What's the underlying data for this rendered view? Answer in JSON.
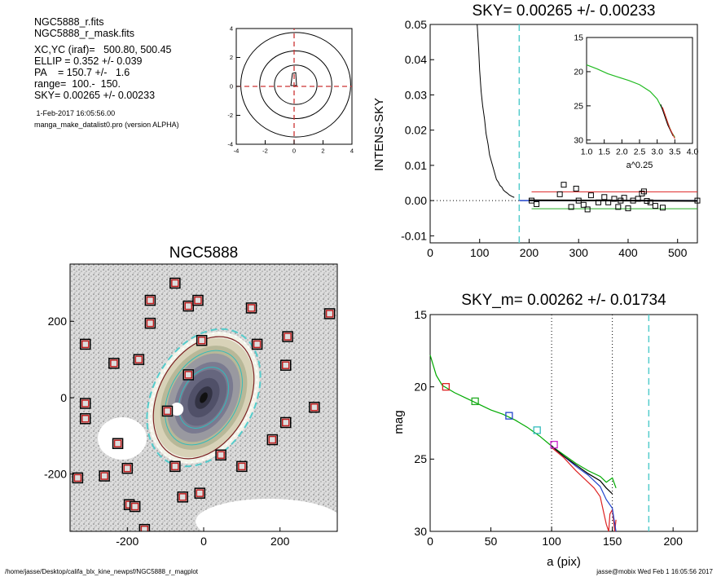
{
  "info": {
    "lines": [
      "NGC5888_r.fits",
      "NGC5888_r_mask.fits",
      "XC,YC (iraf)=   500.80, 500.45",
      "ELLIP = 0.352 +/- 0.039",
      "PA    = 150.7 +/-   1.6",
      "range=  100.-  150.",
      "SKY= 0.00265 +/- 0.00233"
    ],
    "date": " 1-Feb-2017 16:05:56.00",
    "program": "manga_make_datalist0.pro (version ALPHA)"
  },
  "footer": {
    "left": "/home/jasse/Desktop/califa_blx_kine_newpsf/NGC5888_r_magplot",
    "right": "jasse@mobix  Wed Feb  1 16:05:56 2017"
  },
  "chart_data": [
    {
      "id": "contour",
      "type": "contour",
      "xlim": [
        -4,
        4
      ],
      "ylim": [
        -4,
        4
      ],
      "xticks": [
        "-4",
        "-2",
        "0",
        "2",
        "4"
      ],
      "yticks": [
        "4",
        "2",
        "0",
        "-2",
        "-4"
      ],
      "crosshair_color": "#cc3333",
      "contour_radii": [
        3.8,
        2.6,
        1.6
      ]
    },
    {
      "id": "sky",
      "type": "scatter",
      "title": "SKY= 0.00265 +/- 0.00233",
      "ylabel": "INTENS-SKY",
      "xlim": [
        0,
        540
      ],
      "ylim": [
        -0.012,
        0.05
      ],
      "xticks": [
        "0",
        "100",
        "200",
        "300",
        "400",
        "500"
      ],
      "yticks": [
        "0.05",
        "0.04",
        "0.03",
        "0.02",
        "0.01",
        "0.00",
        "-0.01"
      ],
      "vline_x": 180,
      "vline_color": "#55cccc",
      "sky_upper": 0.0025,
      "sky_lower": -0.0023,
      "profile_x": [
        95,
        98,
        100,
        103,
        106,
        110,
        113,
        117,
        120,
        124,
        128,
        131,
        134,
        138,
        141,
        145,
        148,
        152,
        156,
        160,
        165,
        170
      ],
      "profile_y": [
        0.05,
        0.043,
        0.037,
        0.031,
        0.027,
        0.023,
        0.019,
        0.016,
        0.013,
        0.011,
        0.009,
        0.0075,
        0.006,
        0.0052,
        0.0043,
        0.0038,
        0.003,
        0.0025,
        0.0021,
        0.0016,
        0.0012,
        0.0009
      ],
      "points_x": [
        205,
        215,
        262,
        270,
        285,
        295,
        300,
        310,
        318,
        325,
        340,
        352,
        360,
        372,
        380,
        385,
        392,
        400,
        410,
        420,
        428,
        432,
        438,
        445,
        455,
        470,
        540
      ],
      "points_y": [
        0.0,
        -0.001,
        0.0018,
        0.0045,
        -0.0018,
        0.0034,
        0.0,
        -0.0012,
        -0.0025,
        0.0015,
        -0.0005,
        0.001,
        -0.0005,
        0.0005,
        -0.0018,
        0.0,
        0.0008,
        -0.0022,
        0.0,
        0.0005,
        0.002,
        0.0026,
        -0.0001,
        -0.0005,
        -0.0015,
        -0.002,
        0.0
      ],
      "inset": {
        "xlabel": "a^0.25",
        "xlim": [
          1.0,
          4.0
        ],
        "ylim": [
          15,
          30.5
        ],
        "xticks": [
          "1.0",
          "1.5",
          "2.0",
          "2.5",
          "3.0",
          "3.5",
          "4.0"
        ],
        "yticks": [
          "15",
          "20",
          "25",
          "30"
        ],
        "curve_x": [
          1.0,
          1.3,
          1.6,
          1.9,
          2.2,
          2.5,
          2.8,
          3.0,
          3.2,
          3.3,
          3.4,
          3.5
        ],
        "curve_y": [
          19.0,
          19.6,
          20.3,
          20.8,
          21.3,
          21.9,
          22.9,
          24.0,
          26.0,
          27.5,
          28.8,
          29.6
        ]
      }
    },
    {
      "id": "image",
      "type": "image",
      "title": "NGC5888",
      "xlim": [
        -350,
        350
      ],
      "ylim": [
        -350,
        350
      ],
      "xticks": [
        "-200",
        "0",
        "200"
      ],
      "yticks": [
        "200",
        "0",
        "-200"
      ],
      "ellipse_color": "#55cccc",
      "masked_source_count": 33
    },
    {
      "id": "mag",
      "type": "line",
      "title": "SKY_m=  0.00262 +/- 0.01734",
      "xlabel": "a (pix)",
      "ylabel": "mag",
      "xlim": [
        0,
        220
      ],
      "ylim": [
        30,
        15
      ],
      "xticks": [
        "0",
        "50",
        "100",
        "150",
        "200"
      ],
      "yticks": [
        "15",
        "20",
        "25",
        "30"
      ],
      "vlines": [
        100,
        150
      ],
      "cyan_vline": 180,
      "series": [
        {
          "color": "#00aa00",
          "x": [
            0,
            5,
            10,
            20,
            30,
            40,
            50,
            60,
            70,
            80,
            90,
            100,
            110,
            120,
            130,
            140,
            145,
            150,
            153
          ],
          "y": [
            17.8,
            19.2,
            19.9,
            20.4,
            20.8,
            21.2,
            21.6,
            21.9,
            22.3,
            22.8,
            23.4,
            24.1,
            24.7,
            25.3,
            25.8,
            26.2,
            26.6,
            26.3,
            27.0
          ]
        },
        {
          "color": "#dd2222",
          "x": [
            100,
            110,
            120,
            130,
            135,
            140,
            145,
            147,
            148,
            150,
            152,
            153
          ],
          "y": [
            24.2,
            24.9,
            25.8,
            26.6,
            27.0,
            27.6,
            29.5,
            30.0,
            28.8,
            28.5,
            30.0,
            29.2
          ]
        },
        {
          "color": "#2244cc",
          "x": [
            100,
            110,
            120,
            130,
            135,
            140,
            145,
            150,
            152,
            153
          ],
          "y": [
            24.1,
            24.8,
            25.5,
            26.1,
            26.5,
            26.9,
            27.8,
            28.4,
            29.5,
            30.0
          ]
        },
        {
          "color": "#000000",
          "x": [
            100,
            110,
            120,
            130,
            140,
            145,
            150
          ],
          "y": [
            24.1,
            24.8,
            25.4,
            26.0,
            26.5,
            27.0,
            27.4
          ]
        }
      ],
      "markers": [
        {
          "x": 13,
          "y": 20.0,
          "color": "#dd2222"
        },
        {
          "x": 37,
          "y": 21.0,
          "color": "#22aa22"
        },
        {
          "x": 65,
          "y": 22.0,
          "color": "#2244cc"
        },
        {
          "x": 88,
          "y": 23.0,
          "color": "#33bbbb"
        },
        {
          "x": 102,
          "y": 24.0,
          "color": "#cc22cc"
        }
      ]
    }
  ]
}
